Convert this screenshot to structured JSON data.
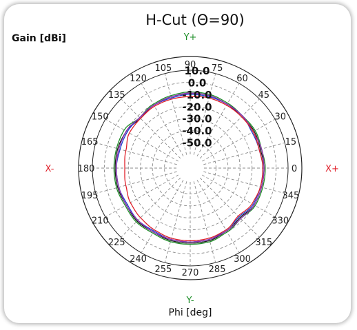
{
  "chart_data": {
    "type": "polar-line",
    "title": "H-Cut (Θ=90)",
    "radial_axis_label": "Gain [dBi]",
    "angle_axis_label": "Phi [deg]",
    "axis_markers": {
      "right": "X+",
      "left": "X-",
      "top": "Y+",
      "bottom": "Y-"
    },
    "radial_range": [
      -60,
      10
    ],
    "radial_ticks": [
      "10.0",
      "0.0",
      "-10.0",
      "-20.0",
      "-30.0",
      "-40.0",
      "-50.0"
    ],
    "radial_tick_values": [
      10,
      0,
      -10,
      -20,
      -30,
      -40,
      -50
    ],
    "angle_ticks": [
      0,
      15,
      30,
      45,
      60,
      75,
      90,
      105,
      120,
      135,
      150,
      165,
      180,
      195,
      210,
      225,
      240,
      255,
      270,
      285,
      300,
      315,
      330,
      345
    ],
    "grid": true,
    "series": [
      {
        "color": "#1a1a1a",
        "phi": [
          0,
          15,
          30,
          45,
          60,
          75,
          90,
          105,
          120,
          135,
          150,
          165,
          180,
          195,
          210,
          225,
          240,
          255,
          270,
          285,
          300,
          315,
          330,
          345,
          360
        ],
        "gain": [
          -10,
          -11,
          -10,
          -11,
          -10,
          -9,
          -9,
          -10,
          -11,
          -13,
          -10,
          -9,
          -9,
          -9,
          -10,
          -9,
          -10,
          -9,
          -9,
          -9,
          -11,
          -13,
          -10,
          -10,
          -10
        ]
      },
      {
        "color": "#1f8f2a",
        "phi": [
          0,
          15,
          30,
          45,
          60,
          75,
          90,
          105,
          120,
          135,
          150,
          165,
          180,
          195,
          210,
          225,
          240,
          255,
          270,
          285,
          300,
          315,
          330,
          345,
          360
        ],
        "gain": [
          -9,
          -10,
          -9,
          -10,
          -9,
          -8,
          -8,
          -9,
          -10,
          -12,
          -8,
          -8,
          -8,
          -8,
          -9,
          -8,
          -9,
          -8,
          -8,
          -8,
          -10,
          -12,
          -9,
          -9,
          -9
        ]
      },
      {
        "color": "#1f3fd0",
        "phi": [
          0,
          15,
          30,
          45,
          60,
          75,
          90,
          105,
          120,
          135,
          150,
          165,
          180,
          195,
          210,
          225,
          240,
          255,
          270,
          285,
          300,
          315,
          330,
          345,
          360
        ],
        "gain": [
          -11,
          -12,
          -12,
          -10,
          -10,
          -10,
          -10,
          -11,
          -11,
          -12,
          -11,
          -11,
          -10,
          -10,
          -11,
          -10,
          -11,
          -10,
          -10,
          -10,
          -12,
          -14,
          -11,
          -11,
          -11
        ]
      },
      {
        "color": "#8e2fb0",
        "phi": [
          0,
          15,
          30,
          45,
          60,
          75,
          90,
          105,
          120,
          135,
          150,
          165,
          180,
          195,
          210,
          225,
          240,
          255,
          270,
          285,
          300,
          315,
          330,
          345,
          360
        ],
        "gain": [
          -10,
          -10,
          -11,
          -10,
          -10,
          -9,
          -9,
          -10,
          -11,
          -12,
          -10,
          -10,
          -10,
          -10,
          -10,
          -10,
          -10,
          -10,
          -10,
          -10,
          -11,
          -12,
          -10,
          -10,
          -10
        ]
      },
      {
        "color": "#e0202a",
        "phi": [
          0,
          15,
          30,
          45,
          60,
          75,
          90,
          105,
          120,
          135,
          150,
          165,
          180,
          195,
          210,
          225,
          240,
          255,
          270,
          285,
          300,
          315,
          330,
          345,
          360
        ],
        "gain": [
          -11,
          -12,
          -11,
          -11,
          -11,
          -11,
          -12,
          -12,
          -12,
          -13,
          -13,
          -16,
          -17,
          -16,
          -14,
          -13,
          -12,
          -11,
          -11,
          -11,
          -12,
          -15,
          -12,
          -11,
          -11
        ]
      }
    ]
  }
}
